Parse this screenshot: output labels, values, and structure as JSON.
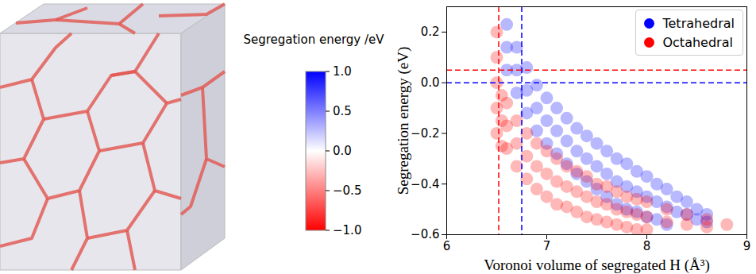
{
  "chart_data": {
    "type": "scatter",
    "xlabel": "Voronoi volume of segregated H (Å³)",
    "ylabel": "Segregation energy (eV)",
    "xlim": [
      6,
      9
    ],
    "xticks": [
      6,
      7,
      8,
      9
    ],
    "ylim": [
      -0.6,
      0.3
    ],
    "yticks": [
      {
        "value": -0.6,
        "label": "−0.6"
      },
      {
        "value": -0.4,
        "label": "−0.4"
      },
      {
        "value": -0.2,
        "label": "−0.2"
      },
      {
        "value": 0,
        "label": "0.0"
      },
      0.2
    ],
    "legend": "upper right",
    "colorbar": {
      "label": "Segregation energy /eV",
      "range": [
        -1,
        1
      ],
      "ticks": [
        {
          "value": 1,
          "label": "1.0"
        },
        0.5,
        {
          "value": 0,
          "label": "0.0"
        },
        {
          "value": -0.5,
          "label": "−0.5"
        },
        {
          "value": -1,
          "label": "−1.0"
        }
      ]
    },
    "series": [
      {
        "name": "Tetrahedral",
        "color": "#0000ff",
        "threshold_x": 6.75,
        "threshold_y": 0.0,
        "values": [
          [
            6.6,
            0.23
          ],
          [
            6.6,
            0.14
          ],
          [
            6.6,
            0.05
          ],
          [
            6.7,
            0.14
          ],
          [
            6.7,
            0.05
          ],
          [
            6.7,
            -0.04
          ],
          [
            6.8,
            0.06
          ],
          [
            6.8,
            -0.03
          ],
          [
            6.8,
            -0.12
          ],
          [
            6.9,
            -0.01
          ],
          [
            6.9,
            -0.1
          ],
          [
            6.9,
            -0.19
          ],
          [
            7.0,
            -0.06
          ],
          [
            7.0,
            -0.15
          ],
          [
            7.0,
            -0.24
          ],
          [
            7.1,
            -0.1
          ],
          [
            7.1,
            -0.19
          ],
          [
            7.1,
            -0.28
          ],
          [
            7.2,
            -0.14
          ],
          [
            7.2,
            -0.23
          ],
          [
            7.2,
            -0.32
          ],
          [
            7.3,
            -0.18
          ],
          [
            7.3,
            -0.27
          ],
          [
            7.3,
            -0.36
          ],
          [
            7.4,
            -0.21
          ],
          [
            7.4,
            -0.3
          ],
          [
            7.4,
            -0.39
          ],
          [
            7.5,
            -0.24
          ],
          [
            7.5,
            -0.33
          ],
          [
            7.5,
            -0.42
          ],
          [
            7.6,
            -0.27
          ],
          [
            7.6,
            -0.36
          ],
          [
            7.6,
            -0.45
          ],
          [
            7.7,
            -0.3
          ],
          [
            7.7,
            -0.39
          ],
          [
            7.7,
            -0.48
          ],
          [
            7.8,
            -0.32
          ],
          [
            7.8,
            -0.41
          ],
          [
            7.8,
            -0.5
          ],
          [
            7.9,
            -0.35
          ],
          [
            7.9,
            -0.43
          ],
          [
            7.9,
            -0.51
          ],
          [
            8.0,
            -0.37
          ],
          [
            8.0,
            -0.45
          ],
          [
            8.0,
            -0.53
          ],
          [
            8.1,
            -0.4
          ],
          [
            8.1,
            -0.47
          ],
          [
            8.1,
            -0.54
          ],
          [
            8.2,
            -0.42
          ],
          [
            8.2,
            -0.49
          ],
          [
            8.2,
            -0.56
          ],
          [
            8.3,
            -0.45
          ],
          [
            8.3,
            -0.51
          ],
          [
            8.4,
            -0.47
          ],
          [
            8.4,
            -0.52
          ],
          [
            8.5,
            -0.5
          ],
          [
            8.5,
            -0.54
          ],
          [
            8.6,
            -0.52
          ],
          [
            8.6,
            -0.55
          ]
        ]
      },
      {
        "name": "Octahedral",
        "color": "#ff0000",
        "threshold_x": 6.52,
        "threshold_y": 0.05,
        "values": [
          [
            6.5,
            0.2
          ],
          [
            6.5,
            0.1
          ],
          [
            6.5,
            0.0
          ],
          [
            6.5,
            -0.1
          ],
          [
            6.5,
            -0.2
          ],
          [
            6.55,
            -0.05
          ],
          [
            6.55,
            -0.15
          ],
          [
            6.55,
            -0.25
          ],
          [
            6.6,
            -0.08
          ],
          [
            6.6,
            -0.17
          ],
          [
            6.6,
            -0.26
          ],
          [
            6.7,
            -0.15
          ],
          [
            6.7,
            -0.24
          ],
          [
            6.7,
            -0.33
          ],
          [
            6.8,
            -0.2
          ],
          [
            6.8,
            -0.29
          ],
          [
            6.8,
            -0.38
          ],
          [
            6.9,
            -0.24
          ],
          [
            6.9,
            -0.33
          ],
          [
            6.9,
            -0.42
          ],
          [
            7.0,
            -0.27
          ],
          [
            7.0,
            -0.36
          ],
          [
            7.0,
            -0.45
          ],
          [
            7.1,
            -0.3
          ],
          [
            7.1,
            -0.39
          ],
          [
            7.1,
            -0.48
          ],
          [
            7.2,
            -0.33
          ],
          [
            7.2,
            -0.41
          ],
          [
            7.2,
            -0.49
          ],
          [
            7.3,
            -0.35
          ],
          [
            7.3,
            -0.43
          ],
          [
            7.3,
            -0.51
          ],
          [
            7.4,
            -0.37
          ],
          [
            7.4,
            -0.45
          ],
          [
            7.4,
            -0.53
          ],
          [
            7.5,
            -0.4
          ],
          [
            7.5,
            -0.47
          ],
          [
            7.5,
            -0.54
          ],
          [
            7.6,
            -0.41
          ],
          [
            7.6,
            -0.48
          ],
          [
            7.6,
            -0.55
          ],
          [
            7.7,
            -0.43
          ],
          [
            7.7,
            -0.5
          ],
          [
            7.7,
            -0.56
          ],
          [
            7.8,
            -0.45
          ],
          [
            7.8,
            -0.51
          ],
          [
            7.8,
            -0.57
          ],
          [
            7.9,
            -0.46
          ],
          [
            7.9,
            -0.52
          ],
          [
            7.9,
            -0.58
          ],
          [
            8.0,
            -0.47
          ],
          [
            8.0,
            -0.53
          ],
          [
            8.0,
            -0.58
          ],
          [
            8.2,
            -0.5
          ],
          [
            8.2,
            -0.55
          ],
          [
            8.4,
            -0.52
          ],
          [
            8.4,
            -0.56
          ],
          [
            8.6,
            -0.54
          ],
          [
            8.6,
            -0.57
          ],
          [
            8.8,
            -0.56
          ]
        ]
      }
    ]
  }
}
